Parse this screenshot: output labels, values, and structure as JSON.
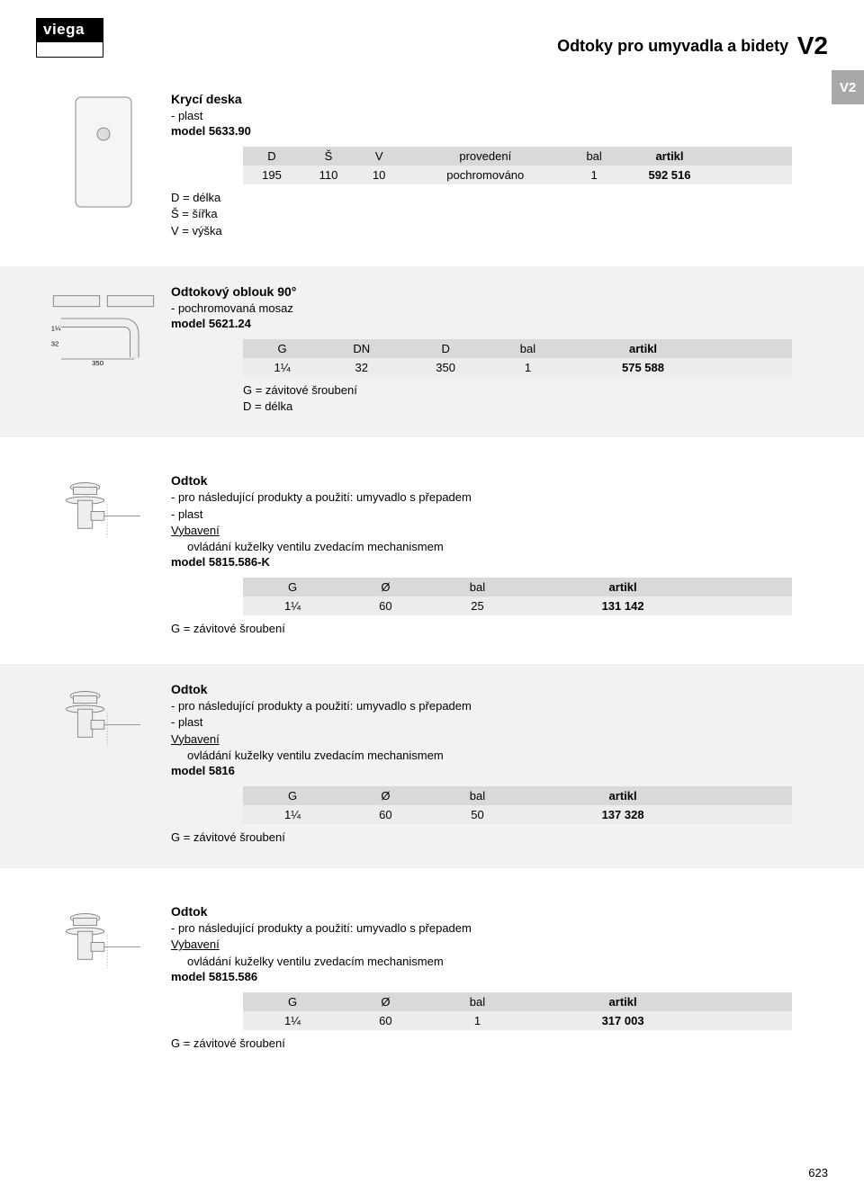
{
  "logo": "viega",
  "header": {
    "text": "Odtoky pro umyvadla a bidety",
    "code": "V2"
  },
  "side_tab": "V2",
  "page_number": "623",
  "sections": [
    {
      "id": "s1",
      "title": "Krycí deska",
      "details": [
        "- plast"
      ],
      "model": "model 5633.90",
      "table": {
        "headers": [
          "D",
          "Š",
          "V",
          "provedení",
          "bal",
          "artikl",
          ""
        ],
        "rows": [
          [
            "195",
            "110",
            "10",
            "pochromováno",
            "1",
            "592 516",
            ""
          ]
        ]
      },
      "legend": [
        "D = délka",
        "Š = šířka",
        "V = výška"
      ],
      "legend_pos": "left",
      "img": "plate"
    },
    {
      "id": "s2",
      "title": "Odtokový oblouk 90°",
      "details": [
        "- pochromovaná mosaz"
      ],
      "model": "model 5621.24",
      "table": {
        "headers": [
          "G",
          "DN",
          "D",
          "bal",
          "artikl",
          ""
        ],
        "rows": [
          [
            "1¼",
            "32",
            "350",
            "1",
            "575 588",
            ""
          ]
        ]
      },
      "legend": [
        "G = závitové šroubení",
        "D = délka"
      ],
      "legend_pos": "under",
      "img": "elbow",
      "bg": true
    },
    {
      "id": "s3",
      "title": "Odtok",
      "details": [
        "- pro následující produkty a použití: umyvadlo s přepadem",
        "- plast",
        {
          "underline": true,
          "text": "Vybavení"
        },
        {
          "indent": true,
          "text": "ovládání kuželky ventilu zvedacím mechanismem"
        }
      ],
      "model": "model 5815.586-K",
      "table": {
        "headers": [
          "G",
          "Ø",
          "bal",
          "artikl",
          ""
        ],
        "rows": [
          [
            "1¼",
            "60",
            "25",
            "131 142",
            ""
          ]
        ]
      },
      "legend": [
        "G = závitové šroubení"
      ],
      "legend_pos": "left",
      "img": "drain"
    },
    {
      "id": "s4",
      "title": "Odtok",
      "details": [
        "- pro následující produkty a použití: umyvadlo s přepadem",
        "- plast",
        {
          "underline": true,
          "text": "Vybavení"
        },
        {
          "indent": true,
          "text": "ovládání kuželky ventilu zvedacím mechanismem"
        }
      ],
      "model": "model 5816",
      "table": {
        "headers": [
          "G",
          "Ø",
          "bal",
          "artikl",
          ""
        ],
        "rows": [
          [
            "1¼",
            "60",
            "50",
            "137 328",
            ""
          ]
        ]
      },
      "legend": [
        "G = závitové šroubení"
      ],
      "legend_pos": "left",
      "img": "drain",
      "bg": true
    },
    {
      "id": "s5",
      "title": "Odtok",
      "details": [
        "- pro následující produkty a použití: umyvadlo s přepadem",
        {
          "underline": true,
          "text": "Vybavení"
        },
        {
          "indent": true,
          "text": "ovládání kuželky ventilu zvedacím mechanismem"
        }
      ],
      "model": "model 5815.586",
      "table": {
        "headers": [
          "G",
          "Ø",
          "bal",
          "artikl",
          ""
        ],
        "rows": [
          [
            "1¼",
            "60",
            "1",
            "317 003",
            ""
          ]
        ]
      },
      "legend": [
        "G = závitové šroubení"
      ],
      "legend_pos": "left",
      "img": "drain"
    }
  ]
}
